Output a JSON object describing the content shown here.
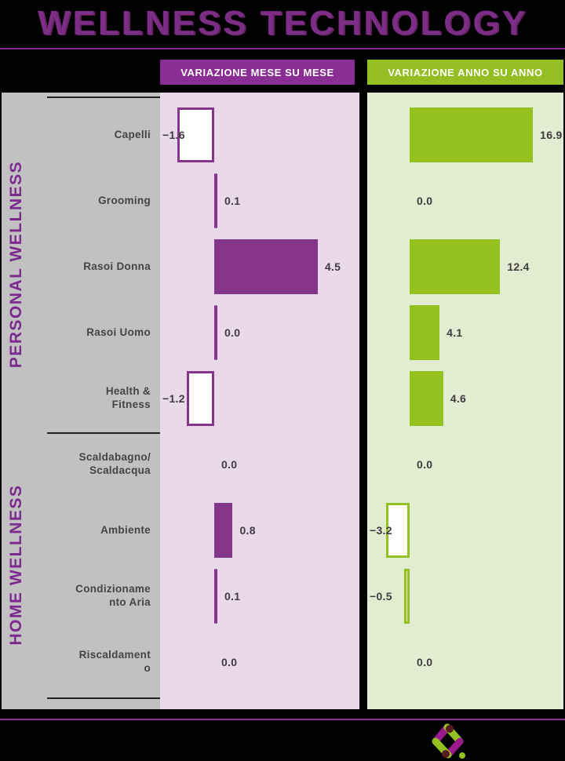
{
  "title": "WELLNESS TECHNOLOGY",
  "columns": {
    "mom": "VARIAZIONE MESE SU MESE",
    "yoy": "VARIAZIONE ANNO SU ANNO"
  },
  "groups": [
    {
      "id": "personal",
      "label": "PERSONAL WELLNESS"
    },
    {
      "id": "home",
      "label": "HOME WELLNESS"
    }
  ],
  "colors": {
    "background": "#000000",
    "title_purple": "#7c2e87",
    "badge_purple": "#8a2e93",
    "badge_green": "#93bf22",
    "sidebar_gray": "#c2c1c2",
    "panel_pink": "#e9d9eb",
    "panel_green": "#e2ecd0",
    "bar_purple": "#85368b",
    "bar_green": "#93c120",
    "label_gray": "#474247",
    "value_gray": "#3f3b3f",
    "logo_magenta": "#9b1b8e",
    "logo_green": "#93c120",
    "logo_maroon": "#561c22"
  },
  "chart_data": {
    "type": "bar",
    "orientation": "horizontal",
    "panels": [
      {
        "id": "mom",
        "title": "VARIAZIONE MESE SU MESE",
        "accent": "#85368b",
        "bg": "#e9d9eb",
        "xlim": [
          -2.4,
          6.3
        ]
      },
      {
        "id": "yoy",
        "title": "VARIAZIONE ANNO SU ANNO",
        "accent": "#93c120",
        "bg": "#e2ecd0",
        "xlim": [
          -5.8,
          21.1
        ]
      }
    ],
    "rows": [
      {
        "label": "Capelli",
        "group": "personal",
        "mom": {
          "value": -1.6,
          "display": "−1.6",
          "bar": true
        },
        "yoy": {
          "value": 16.9,
          "display": "16.9",
          "bar": true
        }
      },
      {
        "label": "Grooming",
        "group": "personal",
        "mom": {
          "value": 0.1,
          "display": "0.1",
          "bar": true
        },
        "yoy": {
          "value": 0.0,
          "display": "0.0",
          "bar": false
        }
      },
      {
        "label": "Rasoi Donna",
        "group": "personal",
        "mom": {
          "value": 4.5,
          "display": "4.5",
          "bar": true
        },
        "yoy": {
          "value": 12.4,
          "display": "12.4",
          "bar": true
        }
      },
      {
        "label": "Rasoi Uomo",
        "group": "personal",
        "mom": {
          "value": 0.0,
          "display": "0.0",
          "bar": true
        },
        "yoy": {
          "value": 4.1,
          "display": "4.1",
          "bar": true
        }
      },
      {
        "label": "Health &\nFitness",
        "group": "personal",
        "mom": {
          "value": -1.2,
          "display": "−1.2",
          "bar": true
        },
        "yoy": {
          "value": 4.6,
          "display": "4.6",
          "bar": true
        }
      },
      {
        "label": "Scaldabagno/\nScaldacqua",
        "group": "home",
        "mom": {
          "value": 0.0,
          "display": "0.0",
          "bar": false
        },
        "yoy": {
          "value": 0.0,
          "display": "0.0",
          "bar": false
        }
      },
      {
        "label": "Ambiente",
        "group": "home",
        "mom": {
          "value": 0.8,
          "display": "0.8",
          "bar": true
        },
        "yoy": {
          "value": -3.2,
          "display": "−3.2",
          "bar": true
        }
      },
      {
        "label": "Condizioname\nnto Aria",
        "group": "home",
        "mom": {
          "value": 0.1,
          "display": "0.1",
          "bar": true
        },
        "yoy": {
          "value": -0.5,
          "display": "−0.5",
          "bar": true
        }
      },
      {
        "label": "Riscaldament\no",
        "group": "home",
        "mom": {
          "value": 0.0,
          "display": "0.0",
          "bar": false
        },
        "yoy": {
          "value": 0.0,
          "display": "0.0",
          "bar": false
        }
      }
    ]
  },
  "logo": {
    "name": "brand-diamond-logo"
  }
}
